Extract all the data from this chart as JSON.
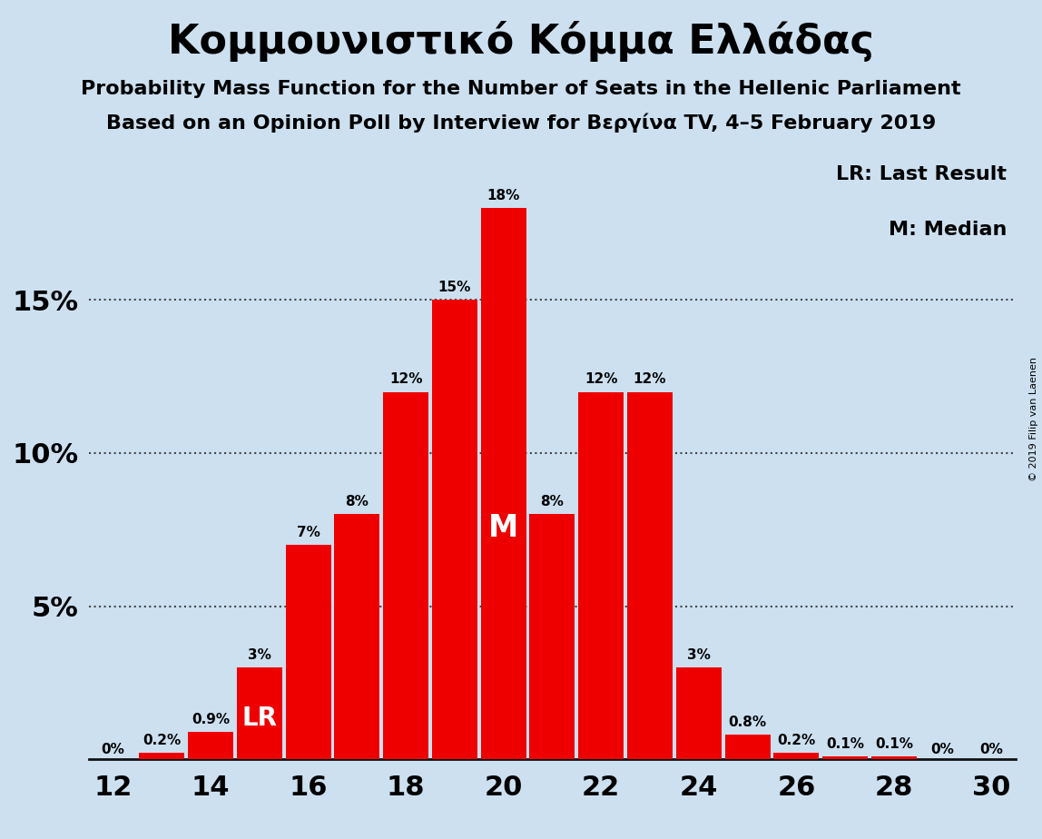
{
  "title": "Κομμουνιστικό Κόμμα Ελλάδας",
  "subtitle1": "Probability Mass Function for the Number of Seats in the Hellenic Parliament",
  "subtitle2": "Based on an Opinion Poll by Interview for Βεργίνα TV, 4–5 February 2019",
  "copyright": "© 2019 Filip van Laenen",
  "legend1": "LR: Last Result",
  "legend2": "M: Median",
  "seats": [
    12,
    13,
    14,
    15,
    16,
    17,
    18,
    19,
    20,
    21,
    22,
    23,
    24,
    25,
    26,
    27,
    28,
    29,
    30
  ],
  "probabilities": [
    0.0,
    0.2,
    0.9,
    3.0,
    7.0,
    8.0,
    12.0,
    15.0,
    18.0,
    8.0,
    12.0,
    12.0,
    3.0,
    0.8,
    0.2,
    0.1,
    0.1,
    0.0,
    0.0
  ],
  "labels": [
    "0%",
    "0.2%",
    "0.9%",
    "3%",
    "7%",
    "8%",
    "12%",
    "15%",
    "18%",
    "8%",
    "12%",
    "12%",
    "3%",
    "0.8%",
    "0.2%",
    "0.1%",
    "0.1%",
    "0%",
    "0%"
  ],
  "bar_color": "#ee0000",
  "bg_color": "#cce0f0",
  "ytick_values": [
    5,
    10,
    15
  ],
  "ytick_labels": [
    "5%",
    "10%",
    "15%"
  ],
  "ylim": [
    0,
    20
  ],
  "xlim": [
    11.5,
    30.5
  ],
  "xticks": [
    12,
    14,
    16,
    18,
    20,
    22,
    24,
    26,
    28,
    30
  ],
  "median_seat": 20,
  "lr_seat": 15,
  "median_label": "M",
  "lr_label": "LR",
  "bar_width": 0.93
}
